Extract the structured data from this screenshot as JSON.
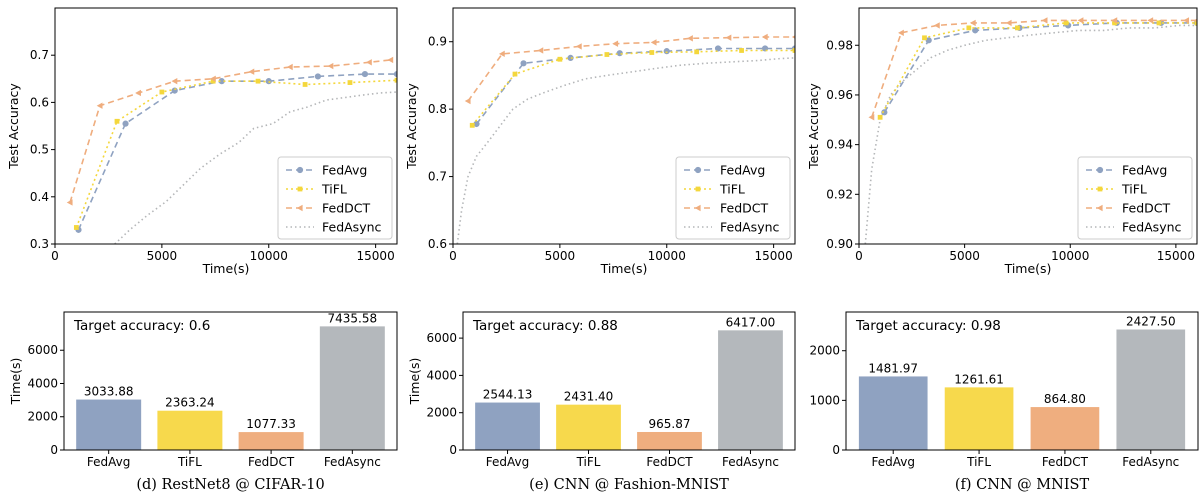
{
  "series_styles": {
    "FedAvg": {
      "color": "#8fa2c1",
      "dash": "6,4",
      "marker": "circle"
    },
    "TiFL": {
      "color": "#f4d73c",
      "dash": "2,3",
      "marker": "square"
    },
    "FedDCT": {
      "color": "#efad7e",
      "dash": "6,4",
      "marker": "triangle-left"
    },
    "FedAsync": {
      "color": "#b4b6b8",
      "dash": "1.5,3",
      "marker": "none"
    }
  },
  "chart_data": [
    {
      "type": "line",
      "ylabel": "Test Accuracy",
      "xlabel": "Time(s)",
      "xlim": [
        0,
        16000
      ],
      "ylim": [
        0.3,
        0.8
      ],
      "xticks": [
        0,
        5000,
        10000,
        15000
      ],
      "yticks": [
        0.3,
        0.4,
        0.5,
        0.6,
        0.7
      ],
      "ytick_labels": [
        "0.3",
        "0.4",
        "0.5",
        "0.6",
        "0.7"
      ],
      "legend_position": "lower-right",
      "legend": [
        "FedAvg",
        "TiFL",
        "FedDCT",
        "FedAsync"
      ],
      "series": [
        {
          "name": "FedAvg",
          "x": [
            1100,
            3300,
            5600,
            7800,
            10000,
            12300,
            14500,
            16000
          ],
          "y": [
            0.33,
            0.555,
            0.625,
            0.645,
            0.645,
            0.655,
            0.66,
            0.66
          ]
        },
        {
          "name": "TiFL",
          "x": [
            1000,
            2900,
            5000,
            7400,
            9500,
            11700,
            13800,
            16000
          ],
          "y": [
            0.335,
            0.56,
            0.622,
            0.645,
            0.645,
            0.638,
            0.642,
            0.647
          ]
        },
        {
          "name": "FedDCT",
          "x": [
            700,
            2100,
            3900,
            5600,
            7400,
            9200,
            11000,
            12900,
            14700,
            15700
          ],
          "y": [
            0.388,
            0.593,
            0.62,
            0.645,
            0.65,
            0.665,
            0.675,
            0.677,
            0.685,
            0.69
          ]
        },
        {
          "name": "FedAsync",
          "x": [
            2800,
            3500,
            4300,
            5200,
            6000,
            6800,
            7700,
            8600,
            9300,
            10200,
            11000,
            11800,
            12700,
            13500,
            14300,
            15200,
            16000
          ],
          "y": [
            0.3,
            0.33,
            0.36,
            0.39,
            0.425,
            0.46,
            0.49,
            0.515,
            0.545,
            0.555,
            0.58,
            0.59,
            0.605,
            0.61,
            0.615,
            0.62,
            0.622
          ]
        }
      ]
    },
    {
      "type": "line",
      "ylabel": "Test Accuracy",
      "xlabel": "Time(s)",
      "xlim": [
        0,
        16000
      ],
      "ylim": [
        0.6,
        0.95
      ],
      "xticks": [
        0,
        5000,
        10000,
        15000
      ],
      "yticks": [
        0.6,
        0.7,
        0.8,
        0.9
      ],
      "ytick_labels": [
        "0.6",
        "0.7",
        "0.8",
        "0.9"
      ],
      "legend_position": "lower-right",
      "legend": [
        "FedAvg",
        "TiFL",
        "FedDCT",
        "FedAsync"
      ],
      "series": [
        {
          "name": "FedAvg",
          "x": [
            1100,
            3300,
            5500,
            7800,
            10000,
            12400,
            14600,
            16000
          ],
          "y": [
            0.778,
            0.868,
            0.876,
            0.883,
            0.886,
            0.89,
            0.89,
            0.89
          ]
        },
        {
          "name": "TiFL",
          "x": [
            900,
            2900,
            5000,
            7200,
            9300,
            11400,
            13500,
            16000
          ],
          "y": [
            0.776,
            0.852,
            0.874,
            0.881,
            0.884,
            0.885,
            0.887,
            0.887
          ]
        },
        {
          "name": "FedDCT",
          "x": [
            700,
            2300,
            4100,
            5900,
            7600,
            9400,
            11100,
            12900,
            14600,
            16000
          ],
          "y": [
            0.812,
            0.882,
            0.887,
            0.893,
            0.897,
            0.899,
            0.905,
            0.906,
            0.907,
            0.907
          ]
        },
        {
          "name": "FedAsync",
          "x": [
            200,
            400,
            700,
            1100,
            1600,
            2200,
            2800,
            3500,
            4300,
            5200,
            6200,
            7200,
            8300,
            9400,
            10600,
            11800,
            13000,
            14200,
            15300,
            16000
          ],
          "y": [
            0.6,
            0.65,
            0.7,
            0.73,
            0.75,
            0.775,
            0.8,
            0.815,
            0.825,
            0.835,
            0.845,
            0.85,
            0.855,
            0.86,
            0.865,
            0.868,
            0.87,
            0.872,
            0.875,
            0.876
          ]
        }
      ]
    },
    {
      "type": "line",
      "ylabel": "Test Accuracy",
      "xlabel": "Time(s)",
      "xlim": [
        0,
        16000
      ],
      "ylim": [
        0.9,
        0.995
      ],
      "xticks": [
        0,
        5000,
        10000,
        15000
      ],
      "yticks": [
        0.9,
        0.92,
        0.94,
        0.96,
        0.98
      ],
      "ytick_labels": [
        "0.90",
        "0.92",
        "0.94",
        "0.96",
        "0.98"
      ],
      "legend_position": "lower-right",
      "legend": [
        "FedAvg",
        "TiFL",
        "FedDCT",
        "FedAsync"
      ],
      "series": [
        {
          "name": "FedAvg",
          "x": [
            1200,
            3300,
            5500,
            7600,
            9900,
            12200,
            14300,
            16000
          ],
          "y": [
            0.953,
            0.982,
            0.986,
            0.987,
            0.988,
            0.989,
            0.989,
            0.989
          ]
        },
        {
          "name": "TiFL",
          "x": [
            1000,
            3100,
            5200,
            7500,
            9800,
            12100,
            14200,
            16000
          ],
          "y": [
            0.951,
            0.983,
            0.987,
            0.987,
            0.989,
            0.989,
            0.989,
            0.989
          ]
        },
        {
          "name": "FedDCT",
          "x": [
            600,
            2000,
            3700,
            5400,
            7100,
            8800,
            10500,
            12100,
            13800,
            15500,
            16000
          ],
          "y": [
            0.951,
            0.985,
            0.988,
            0.989,
            0.989,
            0.99,
            0.99,
            0.99,
            0.99,
            0.99,
            0.99
          ]
        },
        {
          "name": "FedAsync",
          "x": [
            300,
            600,
            1000,
            1500,
            2000,
            2700,
            3400,
            4200,
            5000,
            6000,
            7000,
            8000,
            9200,
            10400,
            11600,
            12800,
            14000,
            15200,
            16000
          ],
          "y": [
            0.9,
            0.93,
            0.95,
            0.96,
            0.965,
            0.97,
            0.975,
            0.978,
            0.98,
            0.982,
            0.983,
            0.984,
            0.985,
            0.986,
            0.986,
            0.987,
            0.987,
            0.988,
            0.988
          ]
        }
      ]
    },
    {
      "type": "bar",
      "ylabel": "Time(s)",
      "target_label": "Target accuracy: 0.6",
      "categories": [
        "FedAvg",
        "TiFL",
        "FedDCT",
        "FedAsync"
      ],
      "values": [
        3033.88,
        2363.24,
        1077.33,
        7435.58
      ],
      "value_labels": [
        "3033.88",
        "2363.24",
        "1077.33",
        "7435.58"
      ],
      "ylim": [
        0,
        8300
      ],
      "yticks": [
        0,
        2000,
        4000,
        6000
      ],
      "caption": "(d) RestNet8 @ CIFAR-10"
    },
    {
      "type": "bar",
      "ylabel": "Time(s)",
      "target_label": "Target accuracy: 0.88",
      "categories": [
        "FedAvg",
        "TiFL",
        "FedDCT",
        "FedAsync"
      ],
      "values": [
        2544.13,
        2431.4,
        965.87,
        6417.0
      ],
      "value_labels": [
        "2544.13",
        "2431.40",
        "965.87",
        "6417.00"
      ],
      "ylim": [
        0,
        7400
      ],
      "yticks": [
        0,
        2000,
        4000,
        6000
      ],
      "caption": "(e) CNN @ Fashion-MNIST"
    },
    {
      "type": "bar",
      "ylabel": "Time(s)",
      "target_label": "Target accuracy: 0.98",
      "categories": [
        "FedAvg",
        "TiFL",
        "FedDCT",
        "FedAsync"
      ],
      "values": [
        1481.97,
        1261.61,
        864.8,
        2427.5
      ],
      "value_labels": [
        "1481.97",
        "1261.61",
        "864.80",
        "2427.50"
      ],
      "ylim": [
        0,
        2780
      ],
      "yticks": [
        0,
        1000,
        2000
      ],
      "caption": "(f) CNN @ MNIST"
    }
  ]
}
